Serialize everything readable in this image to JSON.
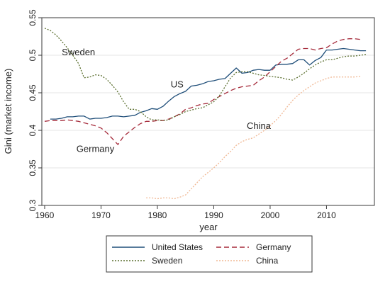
{
  "chart_data": {
    "type": "line",
    "xlabel": "year",
    "ylabel": "Gini (market income)",
    "xlim": [
      1959.5,
      2018.5
    ],
    "ylim": [
      0.3,
      0.55
    ],
    "x_ticks": [
      1960,
      1970,
      1980,
      1990,
      2000,
      2010
    ],
    "x_tick_labels": [
      "1960",
      "1970",
      "1980",
      "1990",
      "2000",
      "2010"
    ],
    "y_ticks": [
      0.3,
      0.35,
      0.4,
      0.45,
      0.5,
      0.55
    ],
    "y_tick_labels": [
      "0.3",
      "0.35",
      "0.4",
      "0.45",
      "0.5",
      "0.55"
    ],
    "grid": true,
    "legend_position": "bottom",
    "series": [
      {
        "name": "United States",
        "color": "#1f4e79",
        "dash": "solid",
        "x": [
          1961,
          1962,
          1963,
          1964,
          1965,
          1966,
          1967,
          1968,
          1969,
          1970,
          1971,
          1972,
          1973,
          1974,
          1975,
          1976,
          1977,
          1978,
          1979,
          1980,
          1981,
          1982,
          1983,
          1984,
          1985,
          1986,
          1987,
          1988,
          1989,
          1990,
          1991,
          1992,
          1993,
          1994,
          1995,
          1996,
          1997,
          1998,
          1999,
          2000,
          2001,
          2002,
          2003,
          2004,
          2005,
          2006,
          2007,
          2008,
          2009,
          2010,
          2011,
          2012,
          2013,
          2014,
          2015,
          2016,
          2017
        ],
        "y": [
          0.415,
          0.415,
          0.416,
          0.418,
          0.418,
          0.419,
          0.419,
          0.415,
          0.416,
          0.416,
          0.417,
          0.419,
          0.419,
          0.418,
          0.419,
          0.42,
          0.424,
          0.426,
          0.429,
          0.428,
          0.432,
          0.439,
          0.445,
          0.449,
          0.452,
          0.459,
          0.46,
          0.462,
          0.465,
          0.466,
          0.468,
          0.469,
          0.476,
          0.483,
          0.476,
          0.477,
          0.48,
          0.481,
          0.48,
          0.48,
          0.487,
          0.488,
          0.488,
          0.489,
          0.494,
          0.494,
          0.487,
          0.493,
          0.497,
          0.507,
          0.507,
          0.508,
          0.509,
          0.508,
          0.507,
          0.506,
          0.506
        ]
      },
      {
        "name": "Germany",
        "color": "#a52a3a",
        "dash": "dashed",
        "x": [
          1960,
          1961,
          1962,
          1963,
          1964,
          1965,
          1966,
          1967,
          1968,
          1969,
          1970,
          1971,
          1972,
          1973,
          1974,
          1975,
          1976,
          1977,
          1978,
          1979,
          1980,
          1981,
          1982,
          1983,
          1984,
          1985,
          1986,
          1987,
          1988,
          1989,
          1990,
          1991,
          1992,
          1993,
          1994,
          1995,
          1996,
          1997,
          1998,
          1999,
          2000,
          2001,
          2002,
          2003,
          2004,
          2005,
          2006,
          2007,
          2008,
          2009,
          2010,
          2011,
          2012,
          2013,
          2014,
          2015,
          2016
        ],
        "y": [
          0.412,
          0.413,
          0.413,
          0.413,
          0.414,
          0.413,
          0.412,
          0.41,
          0.408,
          0.406,
          0.403,
          0.397,
          0.389,
          0.381,
          0.392,
          0.398,
          0.404,
          0.409,
          0.412,
          0.412,
          0.413,
          0.413,
          0.415,
          0.418,
          0.422,
          0.428,
          0.43,
          0.433,
          0.435,
          0.436,
          0.441,
          0.445,
          0.449,
          0.453,
          0.456,
          0.458,
          0.459,
          0.46,
          0.466,
          0.471,
          0.478,
          0.485,
          0.492,
          0.496,
          0.502,
          0.508,
          0.509,
          0.509,
          0.507,
          0.509,
          0.51,
          0.515,
          0.519,
          0.521,
          0.522,
          0.522,
          0.521
        ]
      },
      {
        "name": "Sweden",
        "color": "#5a6e2e",
        "dash": "dotted",
        "x": [
          1960,
          1961,
          1962,
          1963,
          1964,
          1965,
          1966,
          1967,
          1968,
          1969,
          1970,
          1971,
          1972,
          1973,
          1974,
          1975,
          1976,
          1977,
          1978,
          1979,
          1980,
          1981,
          1982,
          1983,
          1984,
          1985,
          1986,
          1987,
          1988,
          1989,
          1990,
          1991,
          1992,
          1993,
          1994,
          1995,
          1996,
          1997,
          1998,
          1999,
          2000,
          2001,
          2002,
          2003,
          2004,
          2005,
          2006,
          2007,
          2008,
          2009,
          2010,
          2011,
          2012,
          2013,
          2014,
          2015,
          2016,
          2017
        ],
        "y": [
          0.536,
          0.533,
          0.527,
          0.519,
          0.51,
          0.5,
          0.489,
          0.47,
          0.471,
          0.474,
          0.473,
          0.468,
          0.46,
          0.451,
          0.438,
          0.428,
          0.428,
          0.425,
          0.418,
          0.414,
          0.414,
          0.413,
          0.414,
          0.418,
          0.421,
          0.425,
          0.427,
          0.429,
          0.43,
          0.434,
          0.438,
          0.446,
          0.458,
          0.47,
          0.477,
          0.478,
          0.478,
          0.476,
          0.474,
          0.473,
          0.472,
          0.471,
          0.47,
          0.468,
          0.467,
          0.471,
          0.476,
          0.482,
          0.487,
          0.491,
          0.494,
          0.494,
          0.496,
          0.498,
          0.499,
          0.499,
          0.5,
          0.501
        ]
      },
      {
        "name": "China",
        "color": "#f0b894",
        "dash": "dotted",
        "x": [
          1978,
          1979,
          1980,
          1981,
          1982,
          1983,
          1984,
          1985,
          1986,
          1987,
          1988,
          1989,
          1990,
          1991,
          1992,
          1993,
          1994,
          1995,
          1996,
          1997,
          1998,
          1999,
          2000,
          2001,
          2002,
          2003,
          2004,
          2005,
          2006,
          2007,
          2008,
          2009,
          2010,
          2011,
          2012,
          2013,
          2014,
          2015,
          2016
        ],
        "y": [
          0.31,
          0.31,
          0.309,
          0.31,
          0.31,
          0.309,
          0.311,
          0.314,
          0.322,
          0.33,
          0.338,
          0.344,
          0.35,
          0.357,
          0.365,
          0.372,
          0.38,
          0.385,
          0.388,
          0.39,
          0.395,
          0.4,
          0.406,
          0.413,
          0.421,
          0.431,
          0.44,
          0.447,
          0.453,
          0.458,
          0.463,
          0.466,
          0.469,
          0.471,
          0.471,
          0.471,
          0.471,
          0.471,
          0.472
        ]
      }
    ],
    "annotations": [
      {
        "text": "Sweden",
        "x": 1966,
        "y": 0.5
      },
      {
        "text": "US",
        "x": 1983.5,
        "y": 0.457
      },
      {
        "text": "Germany",
        "x": 1969,
        "y": 0.371
      },
      {
        "text": "China",
        "x": 1998,
        "y": 0.402
      }
    ]
  },
  "legend": {
    "items": [
      "United States",
      "Germany",
      "Sweden",
      "China"
    ]
  }
}
